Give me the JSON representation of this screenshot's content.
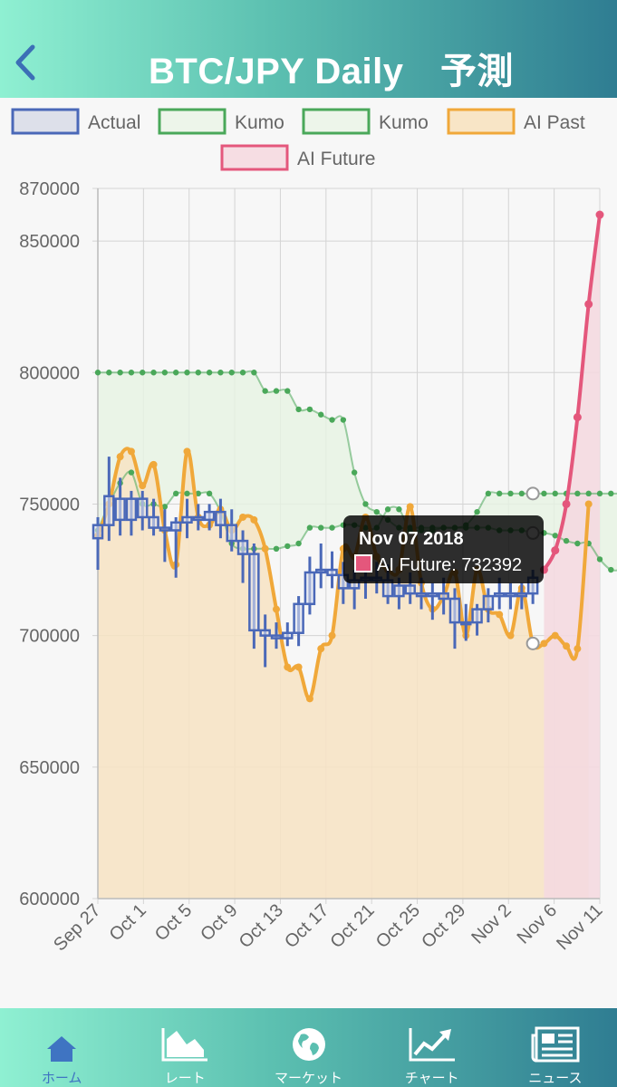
{
  "header": {
    "title": "BTC/JPY Daily　予測"
  },
  "legend": [
    {
      "label": "Actual",
      "stroke": "#4a68b8",
      "fill": "#dde0ea"
    },
    {
      "label": "Kumo",
      "stroke": "#4aa85a",
      "fill": "#edf5ea"
    },
    {
      "label": "Kumo",
      "stroke": "#4aa85a",
      "fill": "#edf5ea"
    },
    {
      "label": "AI Past",
      "stroke": "#f0a83a",
      "fill": "#f8e5c6"
    },
    {
      "label": "AI Future",
      "stroke": "#e4577c",
      "fill": "#f6dde3"
    }
  ],
  "tooltip": {
    "title": "Nov 07 2018",
    "label": "AI Future: 732392",
    "swatch": "#e4577c"
  },
  "tabs": [
    {
      "label": "ホーム",
      "icon": "home-icon",
      "active": true
    },
    {
      "label": "レート",
      "icon": "area-chart-icon",
      "active": false
    },
    {
      "label": "マーケット",
      "icon": "globe-icon",
      "active": false
    },
    {
      "label": "チャート",
      "icon": "line-chart-icon",
      "active": false
    },
    {
      "label": "ニュース",
      "icon": "newspaper-icon",
      "active": false
    }
  ],
  "chart_data": {
    "type": "line",
    "ylim": [
      600000,
      870000
    ],
    "yticks": [
      "870000",
      "850000",
      "800000",
      "750000",
      "700000",
      "650000",
      "600000"
    ],
    "xticks": [
      "Sep 27",
      "Oct 1",
      "Oct 5",
      "Oct 9",
      "Oct 13",
      "Oct 17",
      "Oct 21",
      "Oct 25",
      "Oct 29",
      "Nov 2",
      "Nov 6",
      "Nov 11"
    ],
    "series": [
      {
        "name": "AI Past",
        "color": "#f0a83a",
        "values": [
          738000,
          750000,
          768000,
          770000,
          757000,
          765000,
          740000,
          727000,
          770000,
          745000,
          742000,
          748000,
          740000,
          745000,
          744000,
          733000,
          710000,
          688000,
          688000,
          676000,
          695000,
          700000,
          733000,
          730000,
          745000,
          730000,
          725000,
          725000,
          749000,
          720000,
          710000,
          715000,
          724000,
          700000,
          725000,
          710000,
          708000,
          700000,
          718000,
          697000,
          697000,
          700000,
          696000,
          695000,
          750000
        ]
      },
      {
        "name": "AI Future",
        "color": "#e4577c",
        "values": [
          725000,
          732392,
          750000,
          783000,
          826000,
          860000
        ]
      },
      {
        "name": "Kumo",
        "color": "#4aa85a",
        "values": [
          740000,
          750000,
          758000,
          762000,
          750000,
          750000,
          749000,
          754000,
          754000,
          754000,
          754000,
          747000,
          735000,
          733000,
          733000,
          733000,
          733000,
          734000,
          735000,
          741000,
          741000,
          741000,
          742000,
          742000,
          741000,
          741000,
          748000,
          748000,
          740000,
          740000,
          740000,
          741000,
          741000,
          742000,
          747000,
          754000,
          754000,
          754000,
          754000,
          754000,
          754000,
          754000,
          754000,
          754000,
          754000,
          754000,
          754000,
          754000,
          754000,
          754000,
          754000
        ]
      },
      {
        "name": "Kumo",
        "color": "#4aa85a",
        "values": [
          800000,
          800000,
          800000,
          800000,
          800000,
          800000,
          800000,
          800000,
          800000,
          800000,
          800000,
          800000,
          800000,
          800000,
          800000,
          793000,
          793000,
          793000,
          786000,
          786000,
          784000,
          782000,
          782000,
          762000,
          750000,
          747000,
          744000,
          741000,
          741000,
          741000,
          741000,
          741000,
          741000,
          741000,
          741000,
          741000,
          740000,
          740000,
          740000,
          739000,
          739000,
          738000,
          736000,
          735000,
          735000,
          729000,
          725000,
          725000,
          725000,
          725000,
          725000
        ]
      },
      {
        "name": "Actual",
        "color": "#4a68b8",
        "candles": [
          [
            737000,
            745000,
            725000,
            742000
          ],
          [
            742000,
            768000,
            736000,
            753000
          ],
          [
            752000,
            760000,
            738000,
            744000
          ],
          [
            744000,
            755000,
            738000,
            752000
          ],
          [
            752000,
            755000,
            740000,
            745000
          ],
          [
            745000,
            752000,
            738000,
            741000
          ],
          [
            741000,
            748000,
            728000,
            740000
          ],
          [
            740000,
            745000,
            722000,
            743000
          ],
          [
            743000,
            752000,
            737000,
            745000
          ],
          [
            745000,
            750000,
            740000,
            744000
          ],
          [
            744000,
            750000,
            740000,
            747000
          ],
          [
            747000,
            752000,
            737000,
            742000
          ],
          [
            742000,
            748000,
            732000,
            736000
          ],
          [
            736000,
            740000,
            720000,
            731000
          ],
          [
            731000,
            735000,
            695000,
            702000
          ],
          [
            702000,
            708000,
            688000,
            700000
          ],
          [
            700000,
            705000,
            695000,
            699000
          ],
          [
            699000,
            705000,
            696000,
            701000
          ],
          [
            701000,
            715000,
            696000,
            712000
          ],
          [
            712000,
            730000,
            708000,
            724000
          ],
          [
            724000,
            735000,
            718000,
            725000
          ],
          [
            725000,
            732000,
            718000,
            723000
          ],
          [
            723000,
            728000,
            712000,
            718000
          ],
          [
            718000,
            725000,
            710000,
            721000
          ],
          [
            721000,
            726000,
            714000,
            722000
          ],
          [
            722000,
            728000,
            716000,
            721000
          ],
          [
            721000,
            727000,
            712000,
            715000
          ],
          [
            715000,
            722000,
            710000,
            719000
          ],
          [
            719000,
            724000,
            712000,
            716000
          ],
          [
            716000,
            722000,
            710000,
            715000
          ],
          [
            715000,
            720000,
            706000,
            716000
          ],
          [
            716000,
            722000,
            708000,
            714000
          ],
          [
            714000,
            718000,
            695000,
            705000
          ],
          [
            705000,
            712000,
            698000,
            705000
          ],
          [
            705000,
            712000,
            700000,
            710000
          ],
          [
            710000,
            718000,
            705000,
            715000
          ],
          [
            715000,
            722000,
            710000,
            716000
          ],
          [
            716000,
            720000,
            710000,
            715000
          ],
          [
            715000,
            720000,
            710000,
            716000
          ],
          [
            716000,
            725000,
            712000,
            722000
          ]
        ]
      }
    ]
  }
}
